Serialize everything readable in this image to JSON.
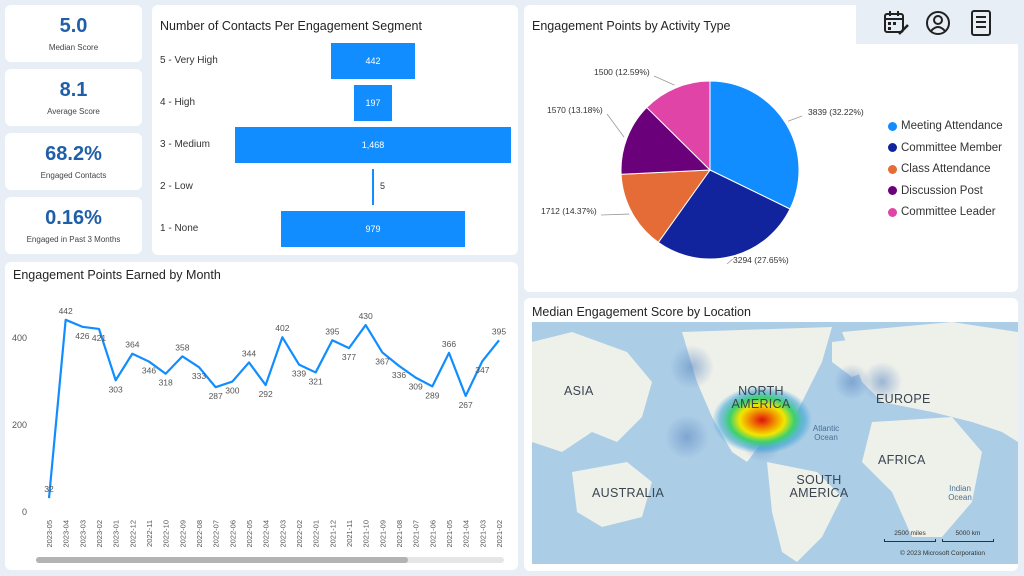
{
  "kpis": [
    {
      "value": "5.0",
      "label": "Median Score"
    },
    {
      "value": "8.1",
      "label": "Average Score"
    },
    {
      "value": "68.2%",
      "label": "Engaged Contacts"
    },
    {
      "value": "0.16%",
      "label": "Engaged in Past 3 Months"
    }
  ],
  "toolbar": {
    "icons": [
      "calendar-edit-icon",
      "user-circle-icon",
      "report-document-icon"
    ]
  },
  "funnel": {
    "title": "Number of Contacts Per Engagement Segment",
    "segments": [
      {
        "label": "5 - Very High",
        "value": 442,
        "display": "442"
      },
      {
        "label": "4 - High",
        "value": 197,
        "display": "197"
      },
      {
        "label": "3 - Medium",
        "value": 1468,
        "display": "1,468"
      },
      {
        "label": "2 - Low",
        "value": 5,
        "display": "5"
      },
      {
        "label": "1 - None",
        "value": 979,
        "display": "979"
      }
    ],
    "color": "#118dff"
  },
  "pie": {
    "title": "Engagement Points by Activity Type",
    "slices": [
      {
        "name": "Meeting Attendance",
        "value": 3839,
        "label": "3839 (32.22%)",
        "color": "#118dff"
      },
      {
        "name": "Committee Member",
        "value": 3294,
        "label": "3294 (27.65%)",
        "color": "#12239e"
      },
      {
        "name": "Class Attendance",
        "value": 1712,
        "label": "1712 (14.37%)",
        "color": "#e66c37"
      },
      {
        "name": "Discussion Post",
        "value": 1570,
        "label": "1570 (13.18%)",
        "color": "#6b007b"
      },
      {
        "name": "Committee Leader",
        "value": 1500,
        "label": "1500 (12.59%)",
        "color": "#e044a7"
      }
    ]
  },
  "line": {
    "title": "Engagement Points Earned by Month",
    "yticks": [
      "0",
      "200",
      "400"
    ]
  },
  "map": {
    "title": "Median Engagement Score by Location",
    "regions": [
      "ASIA",
      "NORTH AMERICA",
      "EUROPE",
      "AFRICA",
      "AUSTRALIA",
      "SOUTH AMERICA"
    ],
    "oceans": [
      "Atlantic Ocean",
      "Indian Ocean"
    ],
    "scale_miles": "2500 miles",
    "scale_km": "5000 km",
    "copyright": "© 2023 Microsoft Corporation"
  },
  "chart_data": [
    {
      "type": "bar",
      "title": "Number of Contacts Per Engagement Segment",
      "categories": [
        "5 - Very High",
        "4 - High",
        "3 - Medium",
        "2 - Low",
        "1 - None"
      ],
      "values": [
        442,
        197,
        1468,
        5,
        979
      ]
    },
    {
      "type": "pie",
      "title": "Engagement Points by Activity Type",
      "categories": [
        "Meeting Attendance",
        "Committee Member",
        "Class Attendance",
        "Discussion Post",
        "Committee Leader"
      ],
      "values": [
        3839,
        3294,
        1712,
        1570,
        1500
      ],
      "legend": "right"
    },
    {
      "type": "line",
      "title": "Engagement Points Earned by Month",
      "x": [
        "2023-05",
        "2023-04",
        "2023-03",
        "2023-02",
        "2023-01",
        "2022-12",
        "2022-11",
        "2022-10",
        "2022-09",
        "2022-08",
        "2022-07",
        "2022-06",
        "2022-05",
        "2022-04",
        "2022-03",
        "2022-02",
        "2022-01",
        "2021-12",
        "2021-11",
        "2021-10",
        "2021-09",
        "2021-08",
        "2021-07",
        "2021-06",
        "2021-05",
        "2021-04",
        "2021-03",
        "2021-02"
      ],
      "xticks_shown": [
        "2023-05",
        "2023-04",
        "2023-03",
        "2023-02",
        "2023-01",
        "2022-12",
        "2022-11",
        "2022-10",
        "2022-09",
        "2022-08",
        "2022-07",
        "2022-06",
        "2022-05",
        "2022-04",
        "2022-03",
        "2022-02",
        "2022-01",
        "2021-12",
        "2021-11",
        "2021-10",
        "2021-09",
        "2021-08",
        "2021-07",
        "2021-06",
        "2021-05",
        "2021-04",
        "2021-03",
        "2021-02"
      ],
      "values": [
        32,
        442,
        426,
        421,
        303,
        364,
        346,
        318,
        358,
        333,
        287,
        300,
        344,
        292,
        402,
        339,
        321,
        395,
        377,
        430,
        367,
        336,
        309,
        289,
        366,
        267,
        347,
        395
      ],
      "ylim": [
        0,
        460
      ],
      "yticks": [
        0,
        200,
        400
      ],
      "grid": false,
      "color": "#118dff"
    }
  ]
}
